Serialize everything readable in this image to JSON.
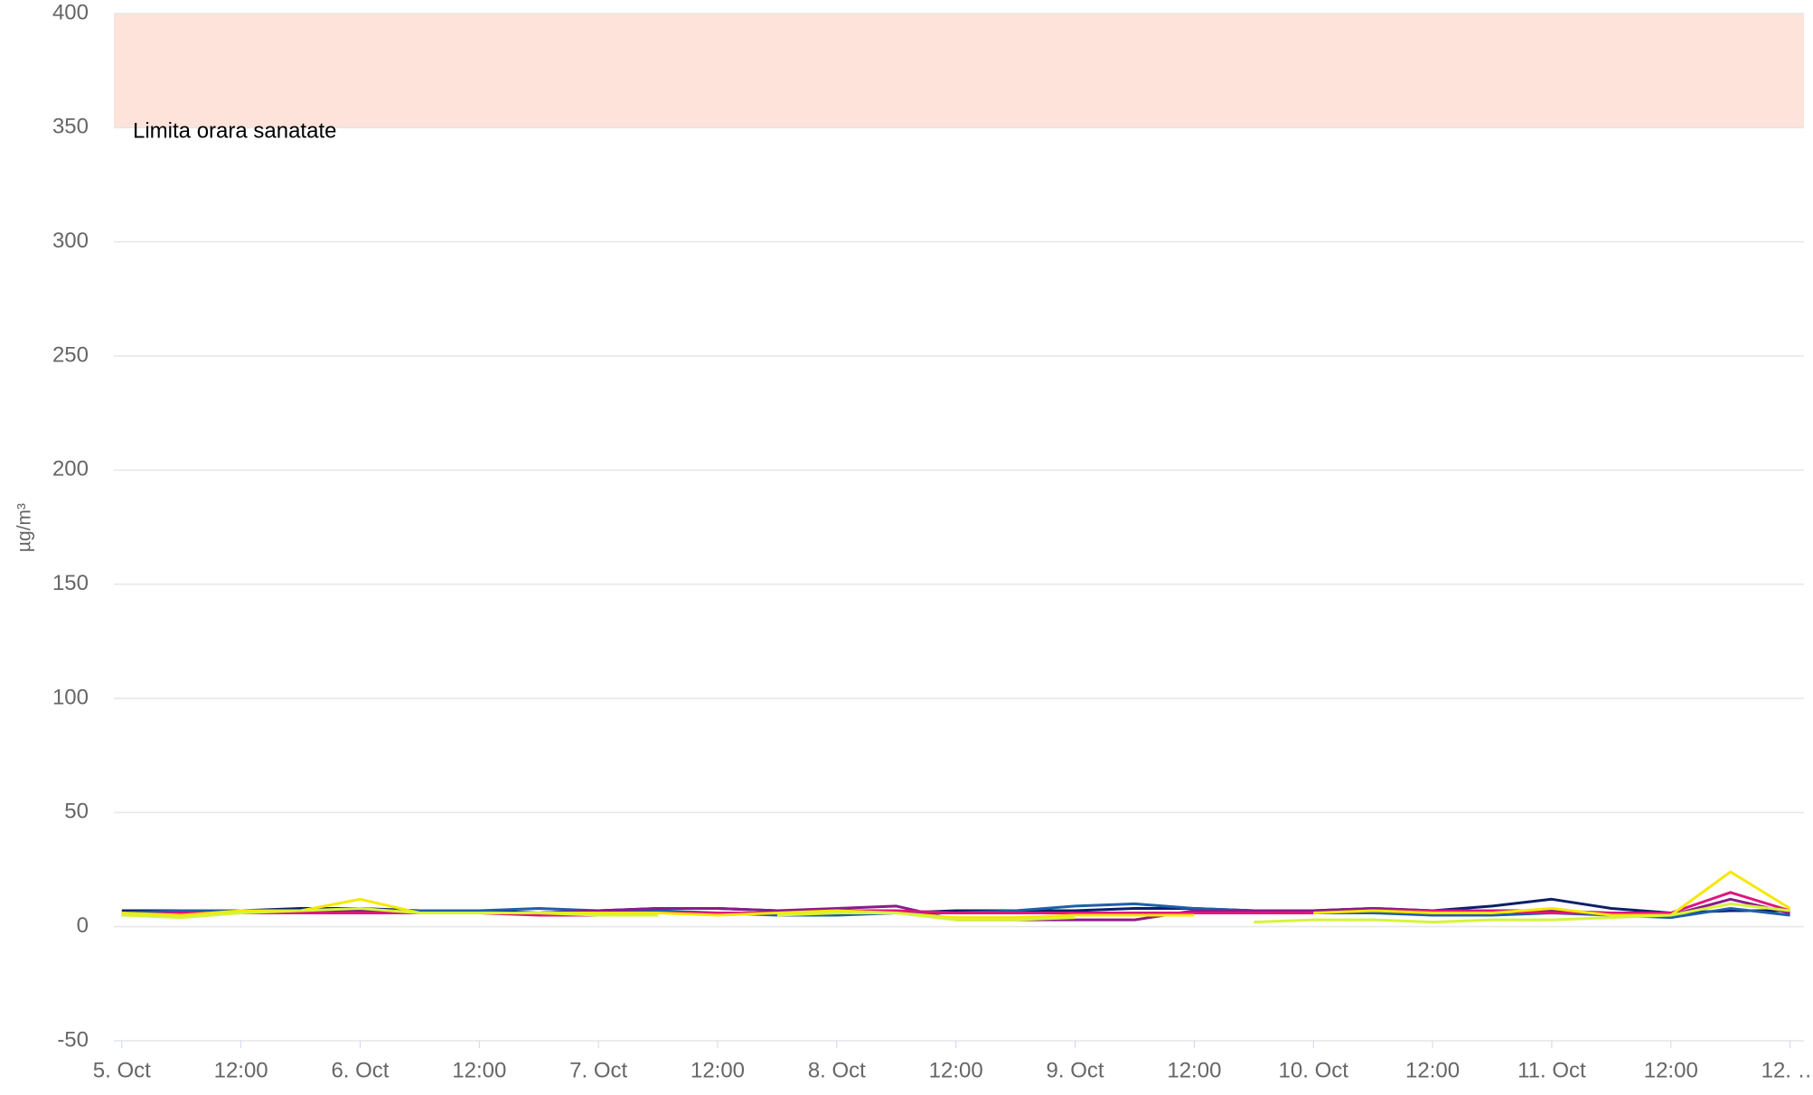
{
  "chart_data": {
    "type": "line",
    "y_axis_label": "µg/m³",
    "ylim": [
      -50,
      400
    ],
    "yticks": [
      -50,
      0,
      50,
      100,
      150,
      200,
      250,
      300,
      350,
      400
    ],
    "xlim": [
      -0.8,
      169.4
    ],
    "xticks": [
      {
        "value": 0,
        "label": "5. Oct"
      },
      {
        "value": 12,
        "label": "12:00"
      },
      {
        "value": 24,
        "label": "6. Oct"
      },
      {
        "value": 36,
        "label": "12:00"
      },
      {
        "value": 48,
        "label": "7. Oct"
      },
      {
        "value": 60,
        "label": "12:00"
      },
      {
        "value": 72,
        "label": "8. Oct"
      },
      {
        "value": 84,
        "label": "12:00"
      },
      {
        "value": 96,
        "label": "9. Oct"
      },
      {
        "value": 108,
        "label": "12:00"
      },
      {
        "value": 120,
        "label": "10. Oct"
      },
      {
        "value": 132,
        "label": "12:00"
      },
      {
        "value": 144,
        "label": "11. Oct"
      },
      {
        "value": 156,
        "label": "12:00"
      },
      {
        "value": 168,
        "label": "12. …"
      }
    ],
    "grid": true,
    "plot_band": {
      "from": 350,
      "to": 400,
      "color": "#fde3d9",
      "label": "Limita orara sanatate"
    },
    "x": [
      0,
      6,
      12,
      18,
      24,
      30,
      36,
      42,
      48,
      54,
      60,
      66,
      72,
      78,
      84,
      90,
      96,
      102,
      108,
      114,
      120,
      126,
      132,
      138,
      144,
      150,
      156,
      162,
      168
    ],
    "series": [
      {
        "color": "#0b1f6b",
        "values": [
          7,
          7,
          7,
          8,
          8,
          7,
          7,
          6,
          7,
          8,
          8,
          7,
          6,
          6,
          7,
          7,
          7,
          8,
          8,
          7,
          7,
          8,
          7,
          9,
          12,
          8,
          6,
          7,
          7
        ]
      },
      {
        "color": "#1f5fa8",
        "values": [
          6,
          7,
          7,
          7,
          7,
          7,
          7,
          8,
          7,
          7,
          6,
          5,
          5,
          6,
          6,
          7,
          9,
          10,
          8,
          7,
          6,
          6,
          5,
          5,
          6,
          5,
          4,
          8,
          5
        ]
      },
      {
        "color": "#8b1a8b",
        "values": [
          5,
          6,
          6,
          6,
          7,
          6,
          6,
          6,
          7,
          8,
          8,
          7,
          8,
          9,
          3,
          3,
          3,
          3,
          7,
          7,
          7,
          8,
          7,
          7,
          7,
          6,
          5,
          12,
          6
        ]
      },
      {
        "color": "#e0157a",
        "values": [
          5,
          6,
          6,
          6,
          6,
          6,
          6,
          5,
          5,
          6,
          6,
          6,
          7,
          7,
          6,
          6,
          6,
          6,
          6,
          6,
          6,
          7,
          7,
          7,
          6,
          6,
          6,
          15,
          7
        ]
      },
      {
        "color": "#f5e800",
        "values": [
          6,
          5,
          7,
          7,
          12,
          6,
          6,
          6,
          6,
          6,
          5,
          6,
          7,
          6,
          4,
          4,
          5,
          5,
          5,
          null,
          6,
          7,
          6,
          6,
          8,
          5,
          5,
          24,
          8
        ]
      },
      {
        "color": "#d4f53c",
        "values": [
          5,
          4,
          6,
          7,
          8,
          6,
          6,
          6,
          5,
          5,
          null,
          5,
          6,
          6,
          3,
          3,
          4,
          null,
          null,
          2,
          3,
          3,
          2,
          3,
          3,
          4,
          5,
          10,
          7
        ]
      }
    ]
  }
}
